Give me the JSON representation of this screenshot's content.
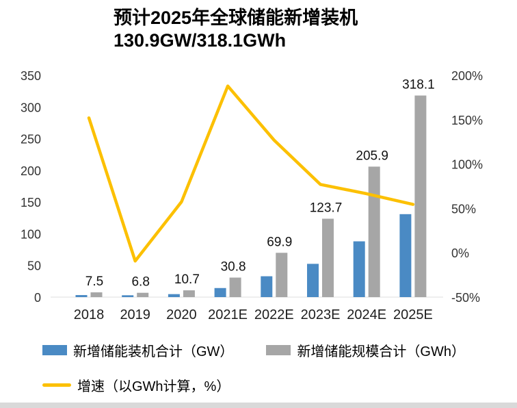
{
  "title": {
    "line1": "预计2025年全球储能新增装机",
    "line2": "130.9GW/318.1GWh"
  },
  "colors": {
    "bar_gw": "#4a8ac4",
    "bar_gwh": "#a6a6a6",
    "line_growth": "#fcc000",
    "axis_text": "#333333",
    "label_text": "#111111",
    "footer_strip": "#d9d9d9"
  },
  "chart_data": {
    "type": "bar+line",
    "categories": [
      "2018",
      "2019",
      "2020",
      "2021E",
      "2022E",
      "2023E",
      "2024E",
      "2025E"
    ],
    "series": [
      {
        "name": "新增储能装机合计（GW）",
        "type": "bar",
        "axis": "left",
        "color": "#4a8ac4",
        "values": [
          3.2,
          2.9,
          4.7,
          14.3,
          32.9,
          52.5,
          88.0,
          130.9
        ]
      },
      {
        "name": "新增储能规模合计（GWh）",
        "type": "bar",
        "axis": "left",
        "color": "#a6a6a6",
        "values": [
          7.5,
          6.8,
          10.7,
          30.8,
          69.9,
          123.7,
          205.9,
          318.1
        ],
        "labels": [
          "7.5",
          "6.8",
          "10.7",
          "30.8",
          "69.9",
          "123.7",
          "205.9",
          "318.1"
        ]
      },
      {
        "name": "增速（以GWh计算，%）",
        "type": "line",
        "axis": "right",
        "color": "#fcc000",
        "values": [
          152.0,
          -9.3,
          57.4,
          187.9,
          126.9,
          77.0,
          66.5,
          54.5
        ]
      }
    ],
    "left_axis": {
      "min": 0,
      "max": 350,
      "step": 50,
      "ticks": [
        "0",
        "50",
        "100",
        "150",
        "200",
        "250",
        "300",
        "350"
      ]
    },
    "right_axis": {
      "min": -50,
      "max": 200,
      "step": 50,
      "ticks": [
        "-50%",
        "0%",
        "50%",
        "100%",
        "150%",
        "200%"
      ]
    },
    "grid": "off",
    "legend_position": "bottom"
  }
}
